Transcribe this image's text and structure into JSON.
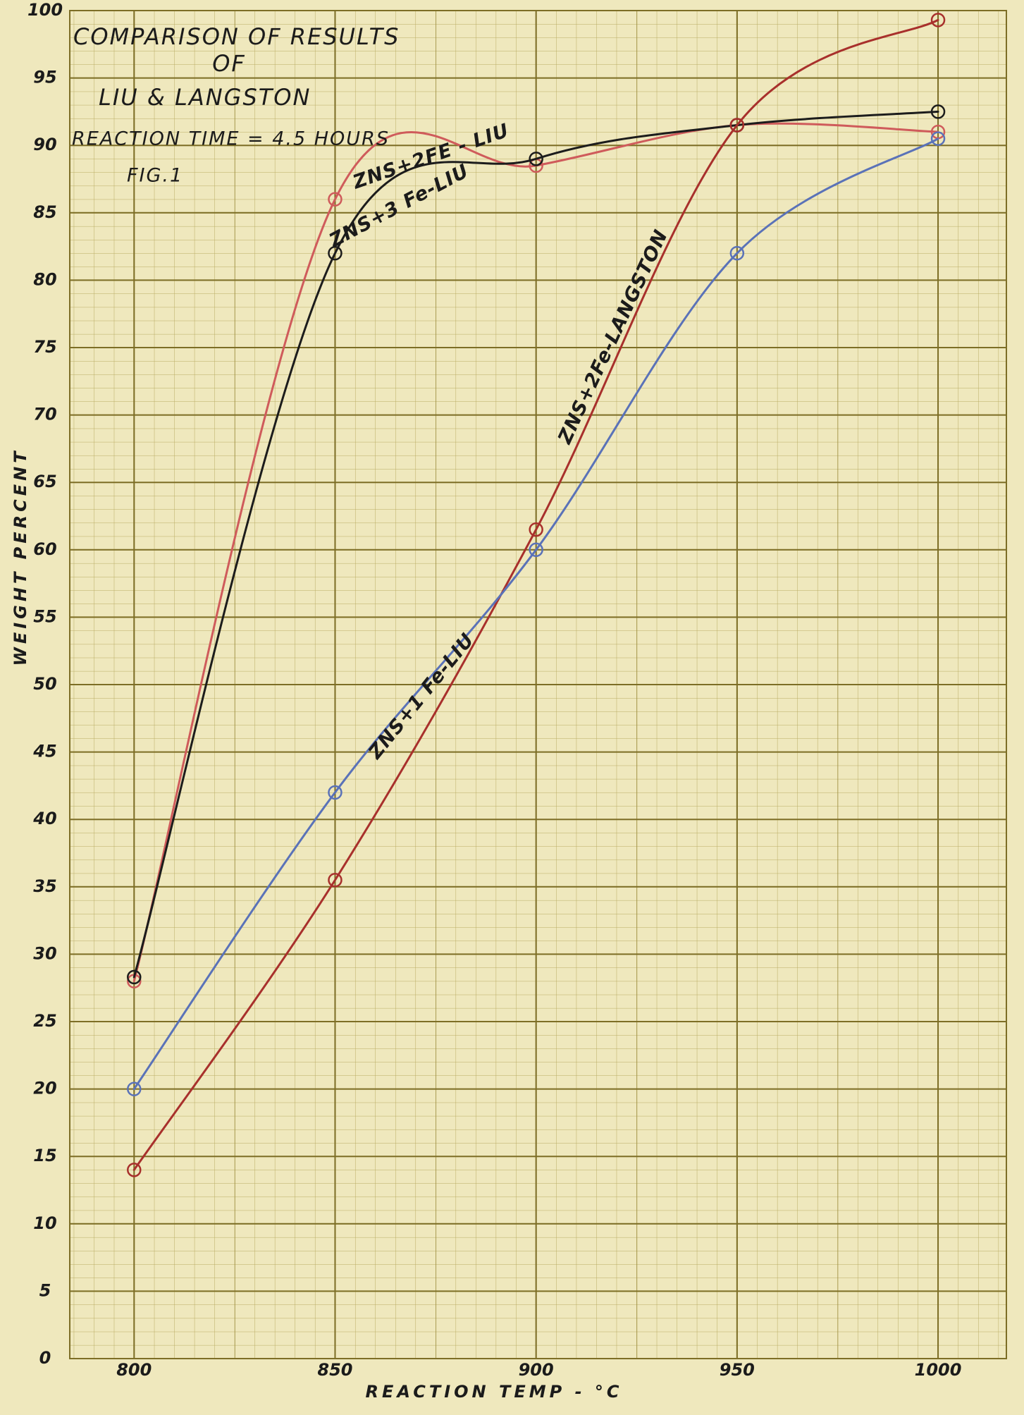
{
  "chart_data": {
    "type": "line",
    "title_lines": [
      "COMPARISON OF RESULTS",
      "OF",
      "LIU & LANGSTON",
      "REACTION TIME = 4.5 HOURS",
      "FIG.1"
    ],
    "x_label": "REACTION TEMP - °C",
    "y_label": "WEIGHT PERCENT",
    "x": [
      800,
      850,
      900,
      950,
      1000
    ],
    "series": [
      {
        "name": "ZNS+2FE - LIU",
        "color": "#cf5b5b",
        "values": [
          28,
          86,
          88.5,
          91.5,
          91
        ]
      },
      {
        "name": "ZNS+3 Fe-LIU",
        "color": "#1c1c1c",
        "values": [
          28.3,
          82,
          89,
          91.5,
          92.5
        ]
      },
      {
        "name": "ZNS+2Fe-LANGSTON",
        "color": "#a8302c",
        "values": [
          14,
          35.5,
          61.5,
          91.5,
          99.3
        ]
      },
      {
        "name": "ZNS+1 Fe-LIU",
        "color": "#5a72b8",
        "values": [
          20,
          42,
          60,
          82,
          90.5
        ]
      }
    ],
    "xlim": [
      784,
      1017
    ],
    "xticks": [
      800,
      850,
      900,
      950,
      1000
    ],
    "ylim": [
      0,
      100
    ],
    "yticks": [
      0,
      5,
      10,
      15,
      20,
      25,
      30,
      35,
      40,
      45,
      50,
      55,
      60,
      65,
      70,
      75,
      80,
      85,
      90,
      95,
      100
    ],
    "grid": true
  }
}
